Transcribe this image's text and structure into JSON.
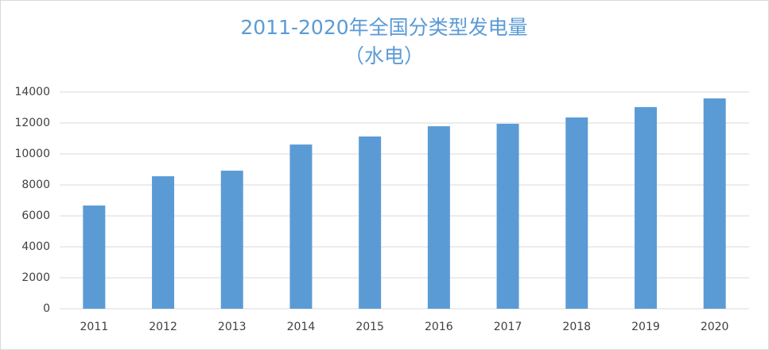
{
  "chart_data": {
    "type": "bar",
    "title": "2011-2020年全国分类型发电量",
    "subtitle": "（水电）",
    "categories": [
      "2011",
      "2012",
      "2013",
      "2014",
      "2015",
      "2016",
      "2017",
      "2018",
      "2019",
      "2020"
    ],
    "values": [
      6670,
      8560,
      8920,
      10610,
      11130,
      11790,
      11950,
      12360,
      13030,
      13590
    ],
    "color": "#5b9bd5",
    "ylim": [
      0,
      14000
    ],
    "yticks": [
      0,
      2000,
      4000,
      6000,
      8000,
      10000,
      12000,
      14000
    ],
    "grid": true
  }
}
